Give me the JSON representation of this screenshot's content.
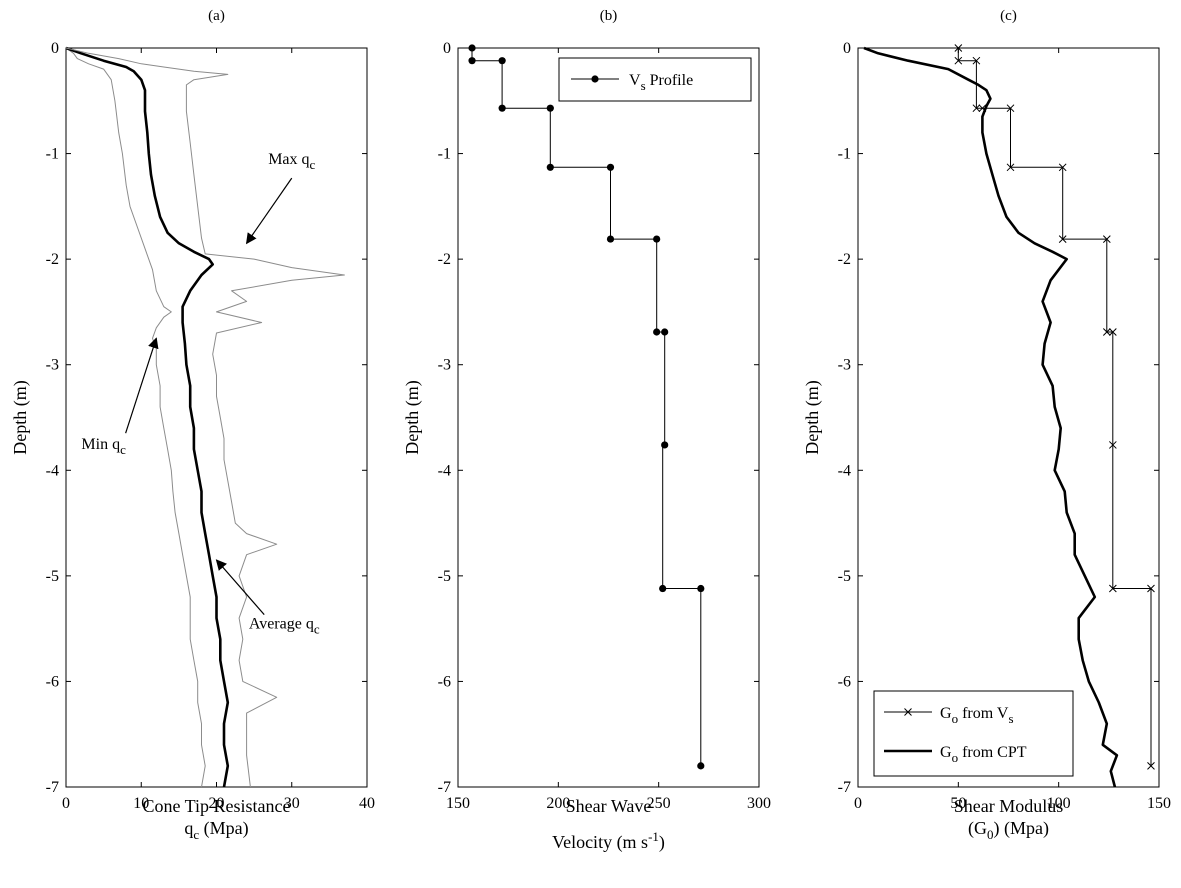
{
  "chart_data": [
    {
      "type": "line",
      "panel_label": "(a)",
      "xlabel_line1": "Cone Tip Resistance",
      "xlabel_line2_main": "q",
      "xlabel_line2_sub": "c",
      "xlabel_line2_tail": " (Mpa)",
      "ylabel": "Depth (m)",
      "xlim": [
        0,
        40
      ],
      "ylim": [
        -7,
        0
      ],
      "xticks": [
        "0",
        "10",
        "20",
        "30",
        "40"
      ],
      "yticks": [
        "0",
        "-1",
        "-2",
        "-3",
        "-4",
        "-5",
        "-6",
        "-7"
      ],
      "series": [
        {
          "name": "Min q_c",
          "color": "#8c8c8c",
          "points": [
            [
              0,
              0
            ],
            [
              1,
              -0.05
            ],
            [
              1.5,
              -0.1
            ],
            [
              3,
              -0.15
            ],
            [
              5,
              -0.2
            ],
            [
              6,
              -0.3
            ],
            [
              6.5,
              -0.5
            ],
            [
              7,
              -0.8
            ],
            [
              7.5,
              -1.0
            ],
            [
              8,
              -1.3
            ],
            [
              8.5,
              -1.5
            ],
            [
              9.5,
              -1.7
            ],
            [
              10.5,
              -1.9
            ],
            [
              11.5,
              -2.1
            ],
            [
              12,
              -2.3
            ],
            [
              13,
              -2.45
            ],
            [
              14,
              -2.5
            ],
            [
              13,
              -2.55
            ],
            [
              12,
              -2.65
            ],
            [
              11.5,
              -2.75
            ],
            [
              12,
              -2.85
            ],
            [
              12,
              -3.0
            ],
            [
              12.5,
              -3.2
            ],
            [
              12.5,
              -3.4
            ],
            [
              13,
              -3.6
            ],
            [
              13.5,
              -3.8
            ],
            [
              14,
              -4.0
            ],
            [
              14.2,
              -4.2
            ],
            [
              14.5,
              -4.4
            ],
            [
              15,
              -4.6
            ],
            [
              15.5,
              -4.8
            ],
            [
              16,
              -5.0
            ],
            [
              16.5,
              -5.2
            ],
            [
              16.5,
              -5.4
            ],
            [
              16.5,
              -5.6
            ],
            [
              17,
              -5.8
            ],
            [
              17.5,
              -6.0
            ],
            [
              17.5,
              -6.2
            ],
            [
              18,
              -6.4
            ],
            [
              18,
              -6.6
            ],
            [
              18.5,
              -6.8
            ],
            [
              18,
              -7.0
            ]
          ]
        },
        {
          "name": "Average q_c",
          "color": "#000000",
          "points": [
            [
              0,
              0
            ],
            [
              2,
              -0.05
            ],
            [
              5,
              -0.12
            ],
            [
              8,
              -0.18
            ],
            [
              9,
              -0.22
            ],
            [
              10,
              -0.3
            ],
            [
              10.5,
              -0.4
            ],
            [
              10.5,
              -0.6
            ],
            [
              10.8,
              -0.8
            ],
            [
              11,
              -1.0
            ],
            [
              11.3,
              -1.2
            ],
            [
              11.8,
              -1.4
            ],
            [
              12.5,
              -1.6
            ],
            [
              13.5,
              -1.75
            ],
            [
              15,
              -1.85
            ],
            [
              17,
              -1.93
            ],
            [
              19,
              -2.0
            ],
            [
              19.5,
              -2.05
            ],
            [
              18,
              -2.15
            ],
            [
              16.5,
              -2.3
            ],
            [
              15.5,
              -2.45
            ],
            [
              15.5,
              -2.6
            ],
            [
              15.8,
              -2.8
            ],
            [
              16,
              -3.0
            ],
            [
              16.5,
              -3.2
            ],
            [
              16.5,
              -3.4
            ],
            [
              17,
              -3.6
            ],
            [
              17,
              -3.8
            ],
            [
              17.5,
              -4.0
            ],
            [
              18,
              -4.2
            ],
            [
              18,
              -4.4
            ],
            [
              18.5,
              -4.6
            ],
            [
              19,
              -4.8
            ],
            [
              19.5,
              -5.0
            ],
            [
              20,
              -5.2
            ],
            [
              20,
              -5.4
            ],
            [
              20.5,
              -5.6
            ],
            [
              20.5,
              -5.8
            ],
            [
              21,
              -6.0
            ],
            [
              21.5,
              -6.2
            ],
            [
              21,
              -6.4
            ],
            [
              21,
              -6.6
            ],
            [
              21.5,
              -6.8
            ],
            [
              21,
              -7.0
            ]
          ]
        },
        {
          "name": "Max q_c",
          "color": "#8c8c8c",
          "points": [
            [
              0,
              0
            ],
            [
              3,
              -0.05
            ],
            [
              7,
              -0.1
            ],
            [
              10,
              -0.15
            ],
            [
              13,
              -0.18
            ],
            [
              15,
              -0.2
            ],
            [
              17,
              -0.22
            ],
            [
              21.5,
              -0.25
            ],
            [
              17,
              -0.3
            ],
            [
              16,
              -0.35
            ],
            [
              16,
              -0.6
            ],
            [
              16.5,
              -0.9
            ],
            [
              17,
              -1.2
            ],
            [
              17.5,
              -1.5
            ],
            [
              18,
              -1.8
            ],
            [
              18.5,
              -1.95
            ],
            [
              25,
              -2.0
            ],
            [
              30,
              -2.08
            ],
            [
              37,
              -2.15
            ],
            [
              30,
              -2.2
            ],
            [
              22,
              -2.3
            ],
            [
              24,
              -2.4
            ],
            [
              20,
              -2.5
            ],
            [
              26,
              -2.6
            ],
            [
              20,
              -2.7
            ],
            [
              19.5,
              -2.9
            ],
            [
              20,
              -3.1
            ],
            [
              20,
              -3.3
            ],
            [
              20.5,
              -3.5
            ],
            [
              21,
              -3.7
            ],
            [
              21,
              -3.9
            ],
            [
              21.5,
              -4.1
            ],
            [
              22,
              -4.3
            ],
            [
              22.5,
              -4.5
            ],
            [
              24,
              -4.6
            ],
            [
              28,
              -4.7
            ],
            [
              24,
              -4.8
            ],
            [
              23,
              -5.0
            ],
            [
              24,
              -5.2
            ],
            [
              23,
              -5.4
            ],
            [
              23.5,
              -5.6
            ],
            [
              23,
              -5.8
            ],
            [
              23.5,
              -6.0
            ],
            [
              28,
              -6.15
            ],
            [
              24,
              -6.3
            ],
            [
              24,
              -6.5
            ],
            [
              24,
              -6.7
            ],
            [
              24.5,
              -7.0
            ]
          ]
        }
      ],
      "annotations": [
        {
          "main": "Max q",
          "sub": "c",
          "text_x": 30,
          "text_y": -1.1,
          "tip_x": 24,
          "tip_y": -1.85
        },
        {
          "main": "Min q",
          "sub": "c",
          "text_x": 5,
          "text_y": -3.8,
          "tip_x": 12,
          "tip_y": -2.75
        },
        {
          "main": "Average q",
          "sub": "c",
          "text_x": 29,
          "text_y": -5.5,
          "tip_x": 20,
          "tip_y": -4.85
        }
      ]
    },
    {
      "type": "line",
      "panel_label": "(b)",
      "xlabel_line1": "Shear Wave",
      "xlabel_line2_main": "Velocity (m s",
      "xlabel_line2_sup": "-1",
      "xlabel_line2_tail": ")",
      "ylabel": "Depth (m)",
      "xlim": [
        150,
        300
      ],
      "ylim": [
        -7,
        0
      ],
      "xticks": [
        "150",
        "200",
        "250",
        "300"
      ],
      "yticks": [
        "0",
        "-1",
        "-2",
        "-3",
        "-4",
        "-5",
        "-6",
        "-7"
      ],
      "legend": {
        "main": "V",
        "sub": "s",
        "tail": " Profile",
        "placement": "top-right"
      },
      "series": [
        {
          "name": "V_s Profile",
          "color": "#000000",
          "marker": "dot",
          "points": [
            [
              157,
              0
            ],
            [
              157,
              -0.12
            ],
            [
              172,
              -0.12
            ],
            [
              172,
              -0.57
            ],
            [
              196,
              -0.57
            ],
            [
              196,
              -1.13
            ],
            [
              226,
              -1.13
            ],
            [
              226,
              -1.81
            ],
            [
              249,
              -1.81
            ],
            [
              249,
              -2.69
            ],
            [
              253,
              -2.69
            ],
            [
              253,
              -3.76
            ],
            [
              252,
              -3.76
            ],
            [
              252,
              -5.12
            ],
            [
              271,
              -5.12
            ],
            [
              271,
              -6.8
            ]
          ],
          "marker_points": [
            [
              157,
              0
            ],
            [
              157,
              -0.12
            ],
            [
              172,
              -0.12
            ],
            [
              172,
              -0.57
            ],
            [
              196,
              -0.57
            ],
            [
              196,
              -1.13
            ],
            [
              226,
              -1.13
            ],
            [
              226,
              -1.81
            ],
            [
              249,
              -1.81
            ],
            [
              249,
              -2.69
            ],
            [
              253,
              -2.69
            ],
            [
              253,
              -3.76
            ],
            [
              252,
              -5.12
            ],
            [
              271,
              -5.12
            ],
            [
              271,
              -6.8
            ]
          ]
        }
      ]
    },
    {
      "type": "line",
      "panel_label": "(c)",
      "xlabel_line1": "Shear Modulus",
      "xlabel_line2_main": "(G",
      "xlabel_line2_sub": "0",
      "xlabel_line2_tail": ") (Mpa)",
      "ylabel": "Depth (m)",
      "xlim": [
        0,
        150
      ],
      "ylim": [
        -7,
        0
      ],
      "xticks": [
        "0",
        "50",
        "100",
        "150"
      ],
      "yticks": [
        "0",
        "-1",
        "-2",
        "-3",
        "-4",
        "-5",
        "-6",
        "-7"
      ],
      "legend_entries": [
        {
          "main": "G",
          "sub": "o",
          "tail": " from V",
          "sub2": "s",
          "style": "thin-x"
        },
        {
          "main": "G",
          "sub": "o",
          "tail": " from CPT",
          "sub2": "",
          "style": "thick"
        }
      ],
      "legend_placement": "bottom-right",
      "series": [
        {
          "name": "G_o from V_s",
          "color": "#000000",
          "marker": "x",
          "points": [
            [
              50,
              0
            ],
            [
              50,
              -0.12
            ],
            [
              59,
              -0.12
            ],
            [
              59,
              -0.57
            ],
            [
              76,
              -0.57
            ],
            [
              76,
              -1.13
            ],
            [
              102,
              -1.13
            ],
            [
              102,
              -1.81
            ],
            [
              124,
              -1.81
            ],
            [
              124,
              -2.69
            ],
            [
              127,
              -2.69
            ],
            [
              127,
              -3.76
            ],
            [
              127,
              -5.12
            ],
            [
              146,
              -5.12
            ],
            [
              146,
              -6.8
            ]
          ],
          "marker_points": [
            [
              50,
              0
            ],
            [
              50,
              -0.12
            ],
            [
              59,
              -0.12
            ],
            [
              59,
              -0.57
            ],
            [
              62,
              -0.57
            ],
            [
              76,
              -0.57
            ],
            [
              76,
              -1.13
            ],
            [
              102,
              -1.13
            ],
            [
              102,
              -1.81
            ],
            [
              124,
              -1.81
            ],
            [
              124,
              -2.69
            ],
            [
              127,
              -2.69
            ],
            [
              127,
              -3.76
            ],
            [
              127,
              -5.12
            ],
            [
              146,
              -5.12
            ],
            [
              146,
              -6.8
            ]
          ]
        },
        {
          "name": "G_o from CPT",
          "color": "#000000",
          "points": [
            [
              3,
              0
            ],
            [
              10,
              -0.05
            ],
            [
              25,
              -0.12
            ],
            [
              45,
              -0.2
            ],
            [
              55,
              -0.3
            ],
            [
              60,
              -0.35
            ],
            [
              64,
              -0.4
            ],
            [
              66,
              -0.48
            ],
            [
              64,
              -0.55
            ],
            [
              62,
              -0.65
            ],
            [
              62,
              -0.8
            ],
            [
              64,
              -1.0
            ],
            [
              67,
              -1.2
            ],
            [
              70,
              -1.4
            ],
            [
              74,
              -1.6
            ],
            [
              80,
              -1.75
            ],
            [
              88,
              -1.85
            ],
            [
              97,
              -1.93
            ],
            [
              104,
              -2.0
            ],
            [
              96,
              -2.2
            ],
            [
              92,
              -2.4
            ],
            [
              96,
              -2.6
            ],
            [
              93,
              -2.8
            ],
            [
              92,
              -3.0
            ],
            [
              97,
              -3.2
            ],
            [
              98,
              -3.4
            ],
            [
              101,
              -3.6
            ],
            [
              100,
              -3.8
            ],
            [
              98,
              -4.0
            ],
            [
              103,
              -4.2
            ],
            [
              104,
              -4.4
            ],
            [
              108,
              -4.6
            ],
            [
              108,
              -4.8
            ],
            [
              113,
              -5.0
            ],
            [
              118,
              -5.2
            ],
            [
              110,
              -5.4
            ],
            [
              110,
              -5.6
            ],
            [
              112,
              -5.8
            ],
            [
              115,
              -6.0
            ],
            [
              120,
              -6.2
            ],
            [
              124,
              -6.4
            ],
            [
              122,
              -6.6
            ],
            [
              129,
              -6.7
            ],
            [
              126,
              -6.85
            ],
            [
              128,
              -7.0
            ]
          ]
        }
      ]
    }
  ]
}
